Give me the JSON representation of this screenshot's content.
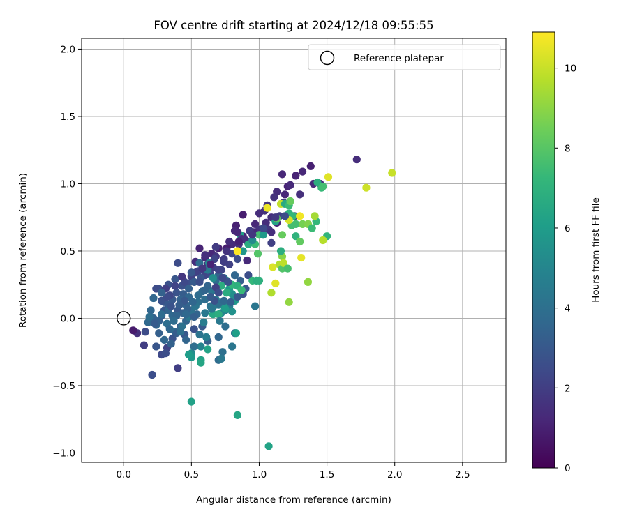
{
  "chart_data": {
    "type": "scatter",
    "title": "FOV centre drift starting at 2024/12/18 09:55:55",
    "xlabel": "Angular distance from reference (arcmin)",
    "ylabel": "Rotation from reference (arcmin)",
    "xlim": [
      -0.31,
      2.82
    ],
    "ylim": [
      -1.07,
      2.08
    ],
    "xticks": [
      0.0,
      0.5,
      1.0,
      1.5,
      2.0,
      2.5
    ],
    "xtick_labels": [
      "0.0",
      "0.5",
      "1.0",
      "1.5",
      "2.0",
      "2.5"
    ],
    "yticks": [
      -1.0,
      -0.5,
      0.0,
      0.5,
      1.0,
      1.5,
      2.0
    ],
    "ytick_labels": [
      "−1.0",
      "−0.5",
      "0.0",
      "0.5",
      "1.0",
      "1.5",
      "2.0"
    ],
    "grid": true,
    "legend": {
      "position": "top-right",
      "entries": [
        "Reference platepar"
      ]
    },
    "reference_point": {
      "x": 0.0,
      "y": 0.0
    },
    "colorbar": {
      "label": "Hours from first FF file",
      "range": [
        0,
        10.9
      ],
      "ticks": [
        0,
        2,
        4,
        6,
        8,
        10
      ],
      "tick_labels": [
        "0",
        "2",
        "4",
        "6",
        "8",
        "10"
      ],
      "colormap": "viridis"
    },
    "points": [
      [
        1.72,
        1.18,
        1.4
      ],
      [
        1.38,
        1.13,
        1.0
      ],
      [
        1.32,
        1.09,
        1.2
      ],
      [
        1.27,
        1.06,
        1.1
      ],
      [
        1.17,
        1.07,
        1.2
      ],
      [
        1.4,
        1.0,
        1.3
      ],
      [
        1.45,
        1.0,
        1.0
      ],
      [
        1.21,
        0.98,
        1.1
      ],
      [
        1.23,
        0.99,
        1.3
      ],
      [
        1.13,
        0.94,
        1.4
      ],
      [
        1.3,
        0.92,
        1.5
      ],
      [
        1.11,
        0.9,
        1.6
      ],
      [
        1.06,
        0.84,
        1.7
      ],
      [
        1.19,
        0.92,
        1.2
      ],
      [
        1.18,
        0.86,
        1.8
      ],
      [
        1.04,
        0.8,
        1.6
      ],
      [
        1.0,
        0.78,
        1.4
      ],
      [
        0.97,
        0.7,
        1.2
      ],
      [
        1.09,
        0.75,
        1.5
      ],
      [
        1.13,
        0.71,
        1.3
      ],
      [
        1.07,
        0.66,
        1.8
      ],
      [
        1.15,
        0.76,
        2.0
      ],
      [
        1.26,
        0.76,
        1.9
      ],
      [
        1.0,
        0.66,
        1.6
      ],
      [
        0.96,
        0.64,
        1.3
      ],
      [
        0.88,
        0.77,
        0.9
      ],
      [
        0.83,
        0.69,
        1.0
      ],
      [
        0.82,
        0.65,
        1.2
      ],
      [
        0.88,
        0.61,
        1.1
      ],
      [
        0.9,
        0.58,
        1.4
      ],
      [
        0.85,
        0.55,
        1.5
      ],
      [
        0.8,
        0.55,
        1.3
      ],
      [
        0.76,
        0.52,
        0.9
      ],
      [
        0.7,
        0.52,
        1.0
      ],
      [
        0.65,
        0.48,
        1.2
      ],
      [
        0.6,
        0.45,
        1.3
      ],
      [
        0.56,
        0.52,
        1.1
      ],
      [
        0.53,
        0.42,
        1.4
      ],
      [
        0.62,
        0.4,
        1.6
      ],
      [
        0.68,
        0.46,
        1.7
      ],
      [
        0.74,
        0.44,
        1.9
      ],
      [
        0.78,
        0.4,
        2.1
      ],
      [
        0.72,
        0.36,
        2.2
      ],
      [
        0.66,
        0.38,
        2.0
      ],
      [
        0.6,
        0.32,
        2.3
      ],
      [
        0.55,
        0.35,
        2.4
      ],
      [
        0.5,
        0.31,
        2.2
      ],
      [
        0.47,
        0.26,
        2.6
      ],
      [
        0.43,
        0.24,
        2.7
      ],
      [
        0.4,
        0.41,
        2.5
      ],
      [
        0.39,
        0.19,
        2.8
      ],
      [
        0.36,
        0.14,
        3.0
      ],
      [
        0.33,
        0.1,
        3.1
      ],
      [
        0.3,
        0.06,
        2.9
      ],
      [
        0.28,
        0.02,
        3.2
      ],
      [
        0.26,
        -0.02,
        3.3
      ],
      [
        0.24,
        -0.05,
        3.5
      ],
      [
        0.22,
        0.0,
        3.4
      ],
      [
        0.2,
        0.06,
        3.6
      ],
      [
        0.18,
        -0.03,
        3.7
      ],
      [
        0.16,
        -0.1,
        2.5
      ],
      [
        0.15,
        -0.2,
        2.0
      ],
      [
        0.1,
        -0.11,
        1.5
      ],
      [
        0.07,
        -0.09,
        0.8
      ],
      [
        0.21,
        -0.42,
        2.6
      ],
      [
        0.28,
        -0.27,
        2.4
      ],
      [
        0.32,
        -0.22,
        2.2
      ],
      [
        0.4,
        -0.37,
        2.0
      ],
      [
        0.36,
        -0.15,
        2.8
      ],
      [
        0.45,
        -0.12,
        3.0
      ],
      [
        0.52,
        -0.08,
        2.7
      ],
      [
        0.58,
        -0.06,
        3.1
      ],
      [
        0.62,
        -0.17,
        3.3
      ],
      [
        0.7,
        -0.14,
        3.6
      ],
      [
        0.75,
        -0.06,
        3.9
      ],
      [
        0.82,
        -0.11,
        4.1
      ],
      [
        0.8,
        -0.21,
        4.3
      ],
      [
        0.73,
        -0.25,
        4.0
      ],
      [
        0.7,
        -0.31,
        3.8
      ],
      [
        0.72,
        -0.3,
        4.4
      ],
      [
        0.61,
        -0.14,
        4.6
      ],
      [
        0.57,
        -0.21,
        4.9
      ],
      [
        0.5,
        -0.26,
        5.3
      ],
      [
        0.5,
        -0.29,
        5.8
      ],
      [
        0.48,
        -0.27,
        6.0
      ],
      [
        0.57,
        -0.31,
        6.2
      ],
      [
        0.57,
        -0.33,
        6.4
      ],
      [
        0.62,
        -0.23,
        6.3
      ],
      [
        0.83,
        -0.11,
        6.1
      ],
      [
        0.5,
        -0.62,
        6.2
      ],
      [
        0.84,
        -0.72,
        6.4
      ],
      [
        1.07,
        -0.95,
        6.3
      ],
      [
        0.6,
        0.04,
        4.4
      ],
      [
        0.64,
        0.09,
        4.2
      ],
      [
        0.68,
        0.14,
        4.5
      ],
      [
        0.72,
        0.04,
        5.2
      ],
      [
        0.75,
        0.06,
        4.8
      ],
      [
        0.78,
        0.09,
        4.6
      ],
      [
        0.8,
        0.05,
        5.5
      ],
      [
        0.82,
        0.13,
        5.8
      ],
      [
        0.8,
        0.18,
        5.4
      ],
      [
        0.78,
        0.22,
        5.9
      ],
      [
        0.76,
        0.28,
        5.1
      ],
      [
        0.72,
        0.24,
        6.8
      ],
      [
        0.65,
        0.2,
        4.3
      ],
      [
        0.6,
        0.14,
        3.9
      ],
      [
        0.58,
        0.2,
        3.7
      ],
      [
        0.62,
        0.24,
        3.5
      ],
      [
        0.68,
        0.28,
        3.8
      ],
      [
        0.7,
        0.32,
        3.4
      ],
      [
        0.74,
        0.3,
        4.1
      ],
      [
        0.82,
        0.32,
        3.6
      ],
      [
        0.86,
        0.28,
        3.3
      ],
      [
        0.9,
        0.22,
        3.0
      ],
      [
        0.88,
        0.18,
        2.8
      ],
      [
        0.92,
        0.32,
        2.6
      ],
      [
        0.84,
        0.44,
        2.5
      ],
      [
        0.8,
        0.48,
        2.3
      ],
      [
        0.74,
        0.42,
        2.0
      ],
      [
        0.7,
        0.36,
        2.2
      ],
      [
        0.64,
        0.33,
        2.4
      ],
      [
        0.57,
        0.3,
        2.9
      ],
      [
        0.52,
        0.27,
        3.1
      ],
      [
        0.48,
        0.22,
        3.3
      ],
      [
        0.44,
        0.18,
        3.2
      ],
      [
        0.42,
        0.14,
        3.4
      ],
      [
        0.46,
        0.1,
        3.6
      ],
      [
        0.5,
        0.06,
        3.8
      ],
      [
        0.54,
        0.03,
        3.5
      ],
      [
        0.4,
        0.06,
        3.0
      ],
      [
        0.36,
        0.02,
        3.7
      ],
      [
        0.32,
        -0.04,
        3.9
      ],
      [
        0.34,
        -0.08,
        3.6
      ],
      [
        0.38,
        -0.1,
        3.8
      ],
      [
        0.42,
        -0.06,
        3.2
      ],
      [
        0.46,
        -0.02,
        3.5
      ],
      [
        0.55,
        0.12,
        4.0
      ],
      [
        0.48,
        0.16,
        3.6
      ],
      [
        0.44,
        0.04,
        3.4
      ],
      [
        0.3,
        0.12,
        3.0
      ],
      [
        0.26,
        0.22,
        2.6
      ],
      [
        0.24,
        0.22,
        2.5
      ],
      [
        0.33,
        0.25,
        2.7
      ],
      [
        0.38,
        0.29,
        2.9
      ],
      [
        0.56,
        0.41,
        3.8
      ],
      [
        0.62,
        0.36,
        4.5
      ],
      [
        0.63,
        0.41,
        5.0
      ],
      [
        0.66,
        0.3,
        5.3
      ],
      [
        0.68,
        0.1,
        4.7
      ],
      [
        0.7,
        0.1,
        4.6
      ],
      [
        0.74,
        0.09,
        5.6
      ],
      [
        0.66,
        0.03,
        6.5
      ],
      [
        0.7,
        0.03,
        6.8
      ],
      [
        0.75,
        0.07,
        6.0
      ],
      [
        0.76,
        0.19,
        6.7
      ],
      [
        0.8,
        0.25,
        7.1
      ],
      [
        0.84,
        0.24,
        6.9
      ],
      [
        0.87,
        0.21,
        7.3
      ],
      [
        0.95,
        0.28,
        7.2
      ],
      [
        0.97,
        0.09,
        4.3
      ],
      [
        0.98,
        0.28,
        6.8
      ],
      [
        0.99,
        0.48,
        7.9
      ],
      [
        1.0,
        0.28,
        6.9
      ],
      [
        0.97,
        0.55,
        7.4
      ],
      [
        0.92,
        0.55,
        6.7
      ],
      [
        0.86,
        0.62,
        6.2
      ],
      [
        0.88,
        0.5,
        5.7
      ],
      [
        0.95,
        0.58,
        5.2
      ],
      [
        1.0,
        0.62,
        7.6
      ],
      [
        1.03,
        0.62,
        5.9
      ],
      [
        1.12,
        0.72,
        6.3
      ],
      [
        1.13,
        0.74,
        8.1
      ],
      [
        1.16,
        0.85,
        9.9
      ],
      [
        1.19,
        0.85,
        6.6
      ],
      [
        1.22,
        0.84,
        7.4
      ],
      [
        1.22,
        0.78,
        7.0
      ],
      [
        1.25,
        0.76,
        7.2
      ],
      [
        1.27,
        0.7,
        7.6
      ],
      [
        1.23,
        0.87,
        8.3
      ],
      [
        1.24,
        0.69,
        7.6
      ],
      [
        1.27,
        0.61,
        7.0
      ],
      [
        1.3,
        0.57,
        8.2
      ],
      [
        1.32,
        0.7,
        8.6
      ],
      [
        1.36,
        0.7,
        8.8
      ],
      [
        1.39,
        0.67,
        7.4
      ],
      [
        1.42,
        0.72,
        7.2
      ],
      [
        1.41,
        0.76,
        9.4
      ],
      [
        1.46,
        0.97,
        7.3
      ],
      [
        1.43,
        1.01,
        6.8
      ],
      [
        1.47,
        0.98,
        7.6
      ],
      [
        1.5,
        0.61,
        7.1
      ],
      [
        1.47,
        0.58,
        9.7
      ],
      [
        1.51,
        1.05,
        10.4
      ],
      [
        1.79,
        0.97,
        10.1
      ],
      [
        1.98,
        1.08,
        10.0
      ],
      [
        1.22,
        0.73,
        10.2
      ],
      [
        1.31,
        0.45,
        10.5
      ],
      [
        1.3,
        0.76,
        10.7
      ],
      [
        1.15,
        0.4,
        9.6
      ],
      [
        1.17,
        0.46,
        8.9
      ],
      [
        1.17,
        0.62,
        8.3
      ],
      [
        1.17,
        0.37,
        7.9
      ],
      [
        1.18,
        0.41,
        9.8
      ],
      [
        1.1,
        0.38,
        10.3
      ],
      [
        1.12,
        0.26,
        10.4
      ],
      [
        1.09,
        0.19,
        9.6
      ],
      [
        1.21,
        0.37,
        7.7
      ],
      [
        1.22,
        0.12,
        9.1
      ],
      [
        1.36,
        0.27,
        9.1
      ],
      [
        1.16,
        0.5,
        6.8
      ],
      [
        1.06,
        0.82,
        10.6
      ],
      [
        0.84,
        0.5,
        10.9
      ],
      [
        1.19,
        0.76,
        2.5
      ],
      [
        1.12,
        0.75,
        1.8
      ],
      [
        1.09,
        0.64,
        1.5
      ],
      [
        1.05,
        0.71,
        1.4
      ],
      [
        1.09,
        0.56,
        2.1
      ],
      [
        1.03,
        0.67,
        2.4
      ],
      [
        0.93,
        0.65,
        1.9
      ],
      [
        0.91,
        0.43,
        1.3
      ],
      [
        0.95,
        0.62,
        1.7
      ],
      [
        0.87,
        0.59,
        1.5
      ],
      [
        0.84,
        0.64,
        1.2
      ],
      [
        0.85,
        0.57,
        1.0
      ],
      [
        0.78,
        0.57,
        1.4
      ],
      [
        0.76,
        0.5,
        1.6
      ],
      [
        0.68,
        0.53,
        1.9
      ],
      [
        0.67,
        0.44,
        2.2
      ],
      [
        0.64,
        0.4,
        1.1
      ],
      [
        0.6,
        0.47,
        1.5
      ],
      [
        0.58,
        0.37,
        1.8
      ],
      [
        0.53,
        0.34,
        2.1
      ],
      [
        0.56,
        0.27,
        2.6
      ],
      [
        0.5,
        0.34,
        3.0
      ],
      [
        0.45,
        0.27,
        2.4
      ],
      [
        0.43,
        0.31,
        1.7
      ],
      [
        0.38,
        0.24,
        2.2
      ],
      [
        0.34,
        0.17,
        2.3
      ],
      [
        0.31,
        0.22,
        2.0
      ],
      [
        0.28,
        0.13,
        2.7
      ],
      [
        0.33,
        0.06,
        3.5
      ],
      [
        0.28,
        0.03,
        3.8
      ],
      [
        0.23,
        -0.04,
        3.1
      ],
      [
        0.26,
        -0.11,
        3.3
      ],
      [
        0.3,
        -0.16,
        3.6
      ],
      [
        0.24,
        -0.21,
        2.9
      ],
      [
        0.31,
        -0.26,
        2.6
      ],
      [
        0.35,
        -0.19,
        3.4
      ],
      [
        0.39,
        -0.11,
        3.2
      ],
      [
        0.46,
        -0.16,
        3.5
      ],
      [
        0.52,
        -0.21,
        3.9
      ],
      [
        0.56,
        -0.12,
        4.2
      ],
      [
        0.43,
        -0.06,
        4.1
      ],
      [
        0.48,
        0.01,
        4.3
      ],
      [
        0.5,
        0.05,
        4.0
      ],
      [
        0.59,
        -0.03,
        4.6
      ],
      [
        0.65,
        0.07,
        4.3
      ],
      [
        0.71,
        -0.02,
        4.4
      ],
      [
        0.7,
        0.11,
        3.9
      ],
      [
        0.74,
        0.13,
        3.7
      ],
      [
        0.79,
        0.12,
        3.3
      ],
      [
        0.84,
        0.16,
        3.0
      ],
      [
        0.77,
        0.27,
        2.8
      ],
      [
        0.73,
        0.3,
        2.4
      ],
      [
        0.68,
        0.23,
        2.1
      ],
      [
        0.7,
        0.19,
        2.5
      ],
      [
        0.67,
        0.13,
        2.7
      ],
      [
        0.64,
        0.16,
        3.1
      ],
      [
        0.6,
        0.21,
        3.5
      ],
      [
        0.55,
        0.17,
        3.8
      ],
      [
        0.53,
        0.09,
        4.2
      ],
      [
        0.51,
        0.12,
        3.6
      ],
      [
        0.47,
        0.07,
        3.4
      ],
      [
        0.45,
        0.13,
        3.0
      ],
      [
        0.41,
        0.1,
        3.2
      ],
      [
        0.39,
        0.02,
        3.5
      ],
      [
        0.37,
        -0.02,
        3.8
      ],
      [
        0.42,
        -0.1,
        4.0
      ],
      [
        0.46,
        0.03,
        3.7
      ],
      [
        0.52,
        0.01,
        3.3
      ],
      [
        0.35,
        0.09,
        2.8
      ],
      [
        0.32,
        0.16,
        2.5
      ],
      [
        0.28,
        0.19,
        3.4
      ],
      [
        0.22,
        0.15,
        3.6
      ],
      [
        0.19,
        0.01,
        3.9
      ]
    ]
  }
}
